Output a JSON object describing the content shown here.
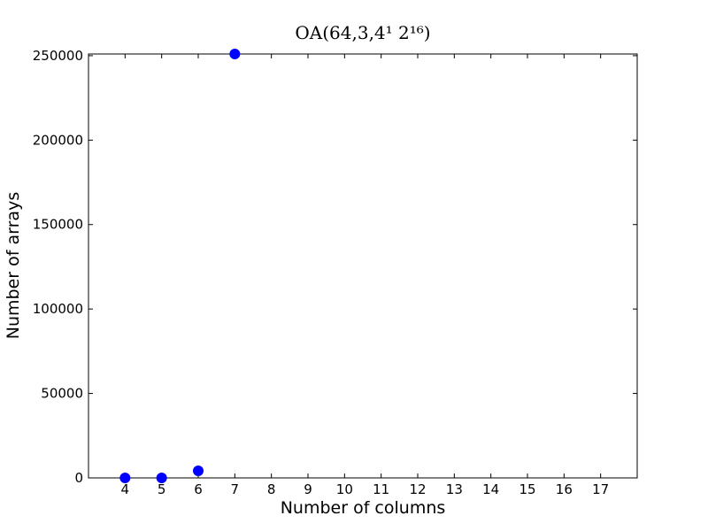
{
  "chart_data": {
    "type": "scatter",
    "title": "OA(64,3,4¹ 2¹⁶)",
    "x_label": "Number of columns",
    "y_label": "Number of arrays",
    "x": [
      4,
      5,
      6,
      7
    ],
    "values": [
      0,
      0,
      4200,
      251000
    ],
    "color": "#0000ff",
    "xlim": [
      3,
      18
    ],
    "xticks": [
      4,
      5,
      6,
      7,
      8,
      9,
      10,
      11,
      12,
      13,
      14,
      15,
      16,
      17
    ],
    "ylim": [
      0,
      251000
    ],
    "yticks": [
      0,
      50000,
      100000,
      150000,
      200000,
      250000
    ]
  }
}
